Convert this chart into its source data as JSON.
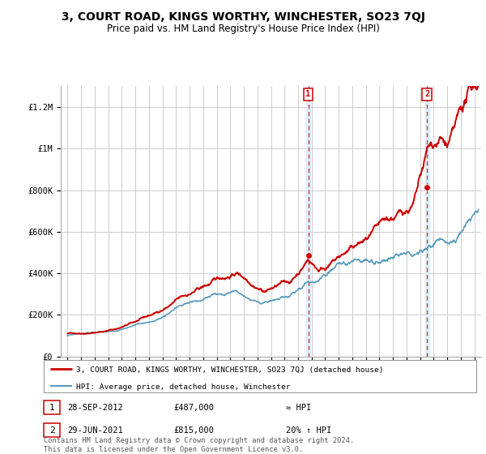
{
  "title": "3, COURT ROAD, KINGS WORTHY, WINCHESTER, SO23 7QJ",
  "subtitle": "Price paid vs. HM Land Registry's House Price Index (HPI)",
  "title_fontsize": 10,
  "subtitle_fontsize": 8.5,
  "background_color": "#ffffff",
  "plot_bg_color": "#ffffff",
  "annotation1": {
    "num": "1",
    "date": "28-SEP-2012",
    "price": "£487,000",
    "vs_hpi": "≈ HPI"
  },
  "annotation2": {
    "num": "2",
    "date": "29-JUN-2021",
    "price": "£815,000",
    "vs_hpi": "20% ↑ HPI"
  },
  "footer": "Contains HM Land Registry data © Crown copyright and database right 2024.\nThis data is licensed under the Open Government Licence v3.0.",
  "vline1_x": 2012.75,
  "vline2_x": 2021.5,
  "sale1_x": 2012.75,
  "sale1_y": 487000,
  "sale2_x": 2021.5,
  "sale2_y": 815000,
  "ylim": [
    0,
    1300000
  ],
  "xlim": [
    1994.5,
    2025.5
  ],
  "yticks": [
    0,
    200000,
    400000,
    600000,
    800000,
    1000000,
    1200000
  ],
  "ytick_labels": [
    "£0",
    "£200K",
    "£400K",
    "£600K",
    "£800K",
    "£1M",
    "£1.2M"
  ],
  "red_line_color": "#cc0000",
  "blue_line_color": "#5599bb",
  "vline_color": "#cc0000",
  "sale_marker_color": "#cc0000",
  "grid_color": "#cccccc",
  "shade_color": "#ddeeff"
}
